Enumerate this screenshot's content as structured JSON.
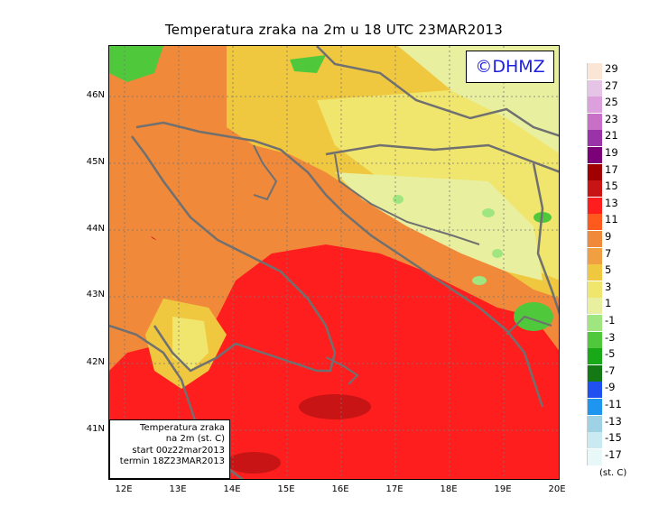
{
  "title": "Temperatura zraka na 2m u 18 UTC 23MAR2013",
  "logo": "©DHMZ",
  "infobox": {
    "line1": "Temperatura zraka",
    "line2": "na 2m (st. C)",
    "line3": "start 00z22mar2013",
    "line4": "termin 18Z23MAR2013"
  },
  "lat_labels": [
    "46N",
    "45N",
    "44N",
    "43N",
    "42N",
    "41N"
  ],
  "lon_labels": [
    "12E",
    "13E",
    "14E",
    "15E",
    "16E",
    "17E",
    "18E",
    "19E",
    "20E"
  ],
  "legend": {
    "labels": [
      "29",
      "27",
      "25",
      "23",
      "21",
      "19",
      "17",
      "15",
      "13",
      "11",
      "9",
      "7",
      "5",
      "3",
      "1",
      "-1",
      "-3",
      "-5",
      "-7",
      "-9",
      "-11",
      "-13",
      "-15",
      "-17"
    ],
    "colors": [
      "#fbe6d6",
      "#e6c4e6",
      "#dca0dc",
      "#c870c8",
      "#9a32a8",
      "#7c0078",
      "#a00000",
      "#c81414",
      "#ff1e1e",
      "#ff5a1e",
      "#f08a3a",
      "#f0a040",
      "#f0c840",
      "#f0e66e",
      "#e8f0a0",
      "#a0e680",
      "#50c83c",
      "#18a818",
      "#147814",
      "#2050f0",
      "#1e96f0",
      "#a0d2e6",
      "#c8eaf0",
      "#e8f8f8"
    ],
    "unit": "(st. C)"
  }
}
